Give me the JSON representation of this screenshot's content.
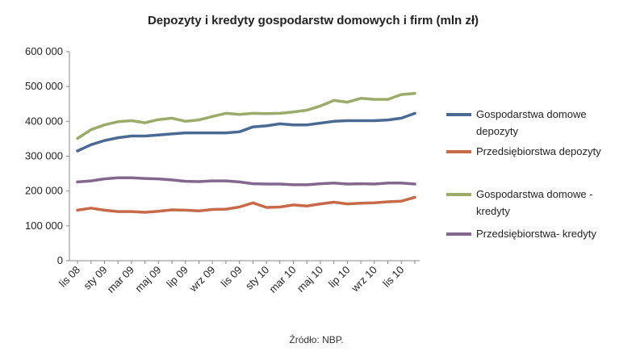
{
  "chart_data": {
    "type": "line",
    "title": "Depozyty i kredyty gospodarstw domowych i firm (mln zł)",
    "source": "Źródło: NBP.",
    "ylim": [
      0,
      600000
    ],
    "yticks": [
      0,
      100000,
      200000,
      300000,
      400000,
      500000,
      600000
    ],
    "ytick_labels": [
      "0",
      "100 000",
      "200 000",
      "300 000",
      "400 000",
      "500 000",
      "600 000"
    ],
    "xtick_labels": [
      "lis 08",
      "sty 09",
      "mar 09",
      "maj 09",
      "lip 09",
      "wrz 09",
      "lis 09",
      "sty 10",
      "mar 10",
      "maj 10",
      "lip 10",
      "wrz 10",
      "lis 10"
    ],
    "x": [
      "2008-11",
      "2008-12",
      "2009-01",
      "2009-02",
      "2009-03",
      "2009-04",
      "2009-05",
      "2009-06",
      "2009-07",
      "2009-08",
      "2009-09",
      "2009-10",
      "2009-11",
      "2009-12",
      "2010-01",
      "2010-02",
      "2010-03",
      "2010-04",
      "2010-05",
      "2010-06",
      "2010-07",
      "2010-08",
      "2010-09",
      "2010-10",
      "2010-11",
      "2010-12"
    ],
    "grid": false,
    "legend_position": "right",
    "series": [
      {
        "name": "Gospodarstwa domowe depozyty",
        "legend_lines": [
          "Gospodarstwa domowe",
          "depozyty"
        ],
        "color": "#4a6a94",
        "values": [
          315000,
          333000,
          345000,
          353000,
          358000,
          358000,
          361000,
          364000,
          367000,
          367000,
          367000,
          367000,
          370000,
          384000,
          387000,
          393000,
          390000,
          390000,
          395000,
          400000,
          402000,
          402000,
          402000,
          404000,
          409000,
          423000
        ]
      },
      {
        "name": "Przedsiębiorstwa depozyty",
        "legend_lines": [
          "Przedsiębiorstwa depozyty"
        ],
        "color": "#c8694a",
        "values": [
          145000,
          151000,
          145000,
          141000,
          141000,
          139000,
          142000,
          146000,
          145000,
          143000,
          147000,
          148000,
          154000,
          166000,
          153000,
          154000,
          160000,
          157000,
          163000,
          168000,
          163000,
          165000,
          166000,
          169000,
          171000,
          182000
        ]
      },
      {
        "name": "Gospodarstwa domowe - kredyty",
        "legend_lines": [
          "Gospodarstwa domowe -",
          "kredyty"
        ],
        "color": "#9bab6a",
        "values": [
          351000,
          376000,
          390000,
          399000,
          402000,
          396000,
          405000,
          409000,
          400000,
          404000,
          414000,
          423000,
          420000,
          423000,
          422000,
          423000,
          427000,
          432000,
          444000,
          460000,
          455000,
          466000,
          463000,
          463000,
          477000,
          480000
        ]
      },
      {
        "name": "Przedsiębiorstwa- kredyty",
        "legend_lines": [
          "Przedsiębiorstwa- kredyty"
        ],
        "color": "#83678f",
        "values": [
          226000,
          229000,
          235000,
          238000,
          238000,
          236000,
          235000,
          232000,
          228000,
          227000,
          229000,
          229000,
          226000,
          221000,
          220000,
          220000,
          218000,
          218000,
          221000,
          223000,
          220000,
          221000,
          220000,
          223000,
          223000,
          220000
        ]
      }
    ]
  }
}
